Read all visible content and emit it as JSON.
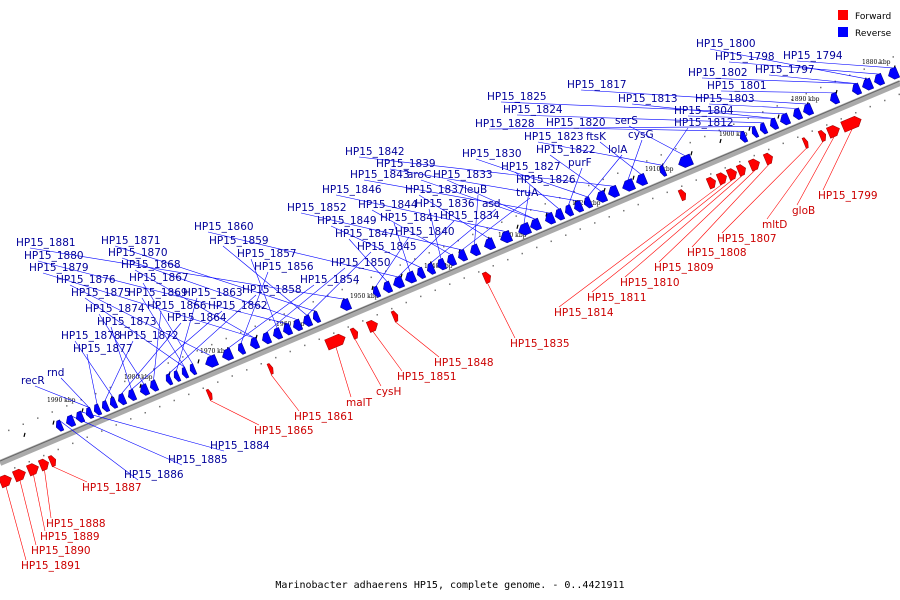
{
  "caption": "Marinobacter adhaerens HP15, complete genome. - 0..4421911",
  "legend": [
    {
      "label": "Forward",
      "color": "#ff0000"
    },
    {
      "label": "Reverse",
      "color": "#0000ff"
    }
  ],
  "colors": {
    "forward": "#ff0000",
    "reverse": "#0000ff",
    "forward_label": "#cc0000",
    "reverse_label": "#000099",
    "backbone": "#888888"
  },
  "ticks": [
    "1880 kbp",
    "1890 kbp",
    "1900 kbp",
    "1910 kbp",
    "1920 kbp",
    "1930 kbp",
    "1940 kbp",
    "1950 kbp",
    "1960 kbp",
    "1970 kbp",
    "1980 kbp",
    "1990 kbp"
  ],
  "reverse_labels": [
    "HP15_1800",
    "HP15_1798",
    "HP15_1794",
    "HP15_1802",
    "HP15_1797",
    "HP15_1801",
    "HP15_1817",
    "HP15_1803",
    "HP15_1825",
    "HP15_1813",
    "HP15_1804",
    "HP15_1824",
    "HP15_1828",
    "HP15_1820",
    "serS",
    "HP15_1812",
    "HP15_1823",
    "ftsK",
    "cysG",
    "HP15_1842",
    "HP15_1822",
    "lolA",
    "HP15_1830",
    "HP15_1839",
    "purF",
    "HP15_1827",
    "HP15_1843",
    "aroC",
    "HP15_1833",
    "HP15_1826",
    "HP15_1846",
    "HP15_1837",
    "leuB",
    "truA",
    "HP15_1852",
    "HP15_1844",
    "HP15_1836",
    "asd",
    "HP15_1849",
    "HP15_1841",
    "HP15_1834",
    "HP15_1860",
    "HP15_1847",
    "HP15_1840",
    "HP15_1881",
    "HP15_1871",
    "HP15_1859",
    "HP15_1845",
    "HP15_1870",
    "HP15_1880",
    "HP15_1857",
    "HP15_1850",
    "HP15_1879",
    "HP15_1868",
    "HP15_1856",
    "HP15_1854",
    "HP15_1876",
    "HP15_1867",
    "HP15_1875",
    "HP15_1869",
    "HP15_1863",
    "HP15_1858",
    "HP15_1866",
    "HP15_1874",
    "HP15_1862",
    "HP15_1873",
    "HP15_1864",
    "HP15_1878",
    "HP15_1872",
    "HP15_1877",
    "recR",
    "rnd",
    "HP15_1884",
    "HP15_1885",
    "HP15_1886"
  ],
  "forward_labels": [
    "HP15_1799",
    "gloB",
    "mltD",
    "HP15_1807",
    "HP15_1808",
    "HP15_1809",
    "HP15_1810",
    "HP15_1811",
    "HP15_1814",
    "HP15_1835",
    "HP15_1848",
    "HP15_1851",
    "cysH",
    "malT",
    "HP15_1861",
    "HP15_1865",
    "HP15_1887",
    "HP15_1888",
    "HP15_1889",
    "HP15_1890",
    "HP15_1891"
  ]
}
